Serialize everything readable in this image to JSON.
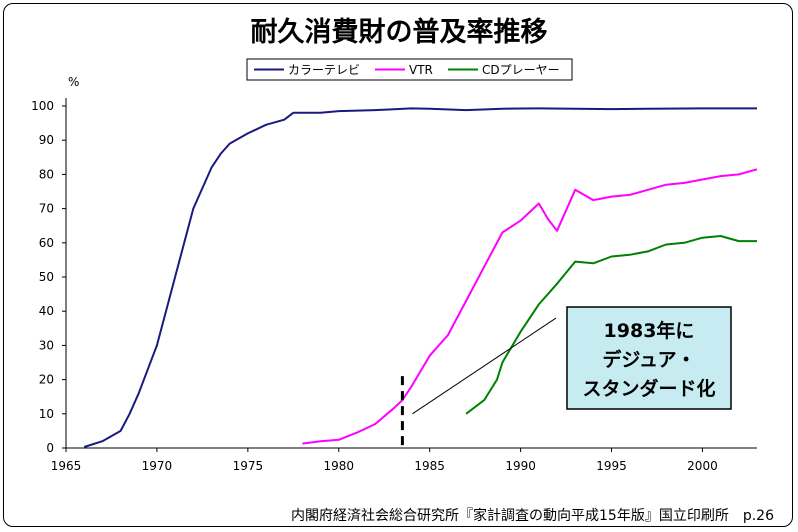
{
  "title": "耐久消費財の普及率推移",
  "source": "内閣府経済社会総合研究所『家計調査の動向平成15年版』国立印刷所　p.26",
  "annotation": {
    "line1": "1983年に",
    "line2": "デジュア・",
    "line3": "スタンダード化"
  },
  "chart_data": {
    "type": "line",
    "ylabel": "%",
    "xlim": [
      1965,
      2003
    ],
    "ylim": [
      0,
      100
    ],
    "x_ticks": [
      1965,
      1970,
      1975,
      1980,
      1985,
      1990,
      1995,
      2000
    ],
    "y_ticks": [
      0,
      10,
      20,
      30,
      40,
      50,
      60,
      70,
      80,
      90,
      100
    ],
    "grid": false,
    "legend": "top-left",
    "marker_year": 1983.5,
    "series": [
      {
        "name": "カラーテレビ",
        "color": "#1a1a80",
        "points": [
          [
            1966,
            0.3
          ],
          [
            1967,
            2
          ],
          [
            1968,
            5
          ],
          [
            1968.5,
            10
          ],
          [
            1969,
            16
          ],
          [
            1969.5,
            23
          ],
          [
            1970,
            30
          ],
          [
            1970.5,
            40
          ],
          [
            1971,
            50
          ],
          [
            1971.5,
            60
          ],
          [
            1972,
            70
          ],
          [
            1972.5,
            76
          ],
          [
            1973,
            82
          ],
          [
            1973.5,
            86
          ],
          [
            1974,
            89
          ],
          [
            1975,
            92
          ],
          [
            1976,
            94.5
          ],
          [
            1977,
            96
          ],
          [
            1977.5,
            98
          ],
          [
            1979,
            98
          ],
          [
            1980,
            98.5
          ],
          [
            1982,
            98.8
          ],
          [
            1984,
            99.3
          ],
          [
            1985,
            99.2
          ],
          [
            1987,
            98.8
          ],
          [
            1989,
            99.2
          ],
          [
            1991,
            99.3
          ],
          [
            1993,
            99.2
          ],
          [
            1995,
            99.1
          ],
          [
            1997,
            99.2
          ],
          [
            2000,
            99.3
          ],
          [
            2003,
            99.3
          ]
        ]
      },
      {
        "name": "VTR",
        "color": "#ff00ff",
        "points": [
          [
            1978,
            1.3
          ],
          [
            1979,
            2
          ],
          [
            1980,
            2.4
          ],
          [
            1981,
            4.5
          ],
          [
            1982,
            7
          ],
          [
            1983,
            11.5
          ],
          [
            1983.5,
            14
          ],
          [
            1984,
            18
          ],
          [
            1985,
            27
          ],
          [
            1986,
            33
          ],
          [
            1987,
            43
          ],
          [
            1988,
            53
          ],
          [
            1989,
            63
          ],
          [
            1990,
            66.5
          ],
          [
            1991,
            71.5
          ],
          [
            1991.5,
            67
          ],
          [
            1992,
            63.5
          ],
          [
            1993,
            75.5
          ],
          [
            1994,
            72.5
          ],
          [
            1995,
            73.5
          ],
          [
            1996,
            74
          ],
          [
            1997,
            75.5
          ],
          [
            1998,
            77
          ],
          [
            1999,
            77.5
          ],
          [
            2000,
            78.5
          ],
          [
            2001,
            79.5
          ],
          [
            2002,
            80
          ],
          [
            2003,
            81.5
          ]
        ]
      },
      {
        "name": "CDプレーヤー",
        "color": "#008000",
        "points": [
          [
            1987,
            10
          ],
          [
            1988,
            14
          ],
          [
            1988.7,
            20
          ],
          [
            1989,
            25
          ],
          [
            1990,
            34
          ],
          [
            1991,
            42
          ],
          [
            1992,
            48
          ],
          [
            1993,
            54.5
          ],
          [
            1994,
            54
          ],
          [
            1995,
            56
          ],
          [
            1996,
            56.5
          ],
          [
            1997,
            57.5
          ],
          [
            1998,
            59.5
          ],
          [
            1999,
            60
          ],
          [
            2000,
            61.5
          ],
          [
            2001,
            62
          ],
          [
            2002,
            60.5
          ],
          [
            2003,
            60.5
          ]
        ]
      }
    ]
  }
}
